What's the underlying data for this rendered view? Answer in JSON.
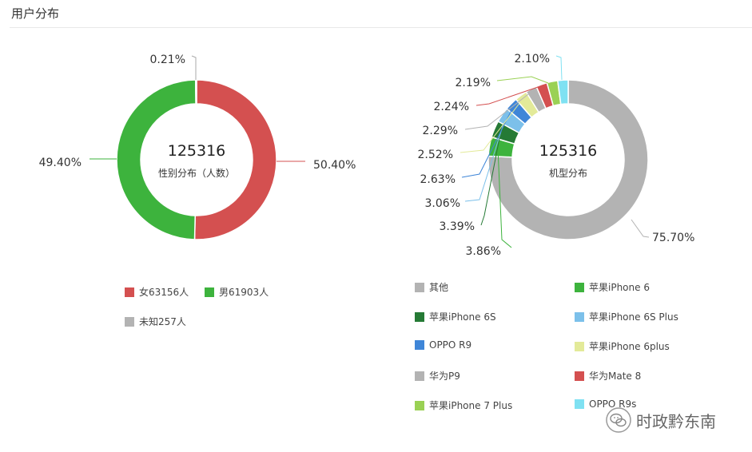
{
  "header": {
    "title": "用户分布"
  },
  "chart_data": [
    {
      "type": "pie",
      "center_value": "125316",
      "center_label": "性别分布（人数）",
      "slices": [
        {
          "name": "女",
          "value": 63156,
          "percent_label": "50.40%",
          "color": "#d45050"
        },
        {
          "name": "男",
          "value": 61903,
          "percent_label": "49.40%",
          "color": "#3db33d"
        },
        {
          "name": "未知",
          "value": 257,
          "percent_label": "0.21%",
          "color": "#b3b3b3"
        }
      ],
      "legend": [
        "女63156人",
        "男61903人",
        "未知257人"
      ]
    },
    {
      "type": "pie",
      "center_value": "125316",
      "center_label": "机型分布",
      "slices": [
        {
          "name": "苹果iPhone 6",
          "percent": 3.86,
          "percent_label": "3.86%",
          "color": "#3db33d"
        },
        {
          "name": "苹果iPhone 6S",
          "percent": 3.39,
          "percent_label": "3.39%",
          "color": "#257a35"
        },
        {
          "name": "苹果iPhone 6S Plus",
          "percent": 3.06,
          "percent_label": "3.06%",
          "color": "#7cc0ea"
        },
        {
          "name": "OPPO R9",
          "percent": 2.63,
          "percent_label": "2.63%",
          "color": "#3f86d8"
        },
        {
          "name": "苹果iPhone 6plus",
          "percent": 2.52,
          "percent_label": "2.52%",
          "color": "#e3ea99"
        },
        {
          "name": "华为P9",
          "percent": 2.29,
          "percent_label": "2.29%",
          "color": "#b3b3b3"
        },
        {
          "name": "华为Mate 8",
          "percent": 2.24,
          "percent_label": "2.24%",
          "color": "#d45050"
        },
        {
          "name": "苹果iPhone 7 Plus",
          "percent": 2.19,
          "percent_label": "2.19%",
          "color": "#9ad154"
        },
        {
          "name": "OPPO R9s",
          "percent": 2.1,
          "percent_label": "2.10%",
          "color": "#7fe1f2"
        },
        {
          "name": "其他",
          "percent": 75.7,
          "percent_label": "75.70%",
          "color": "#b3b3b3"
        }
      ],
      "legend": [
        "其他",
        "苹果iPhone 6",
        "苹果iPhone 6S",
        "苹果iPhone 6S Plus",
        "OPPO R9",
        "苹果iPhone 6plus",
        "华为P9",
        "华为Mate 8",
        "苹果iPhone 7 Plus",
        "OPPO R9s"
      ]
    }
  ],
  "watermark": {
    "text": "时政黔东南"
  }
}
